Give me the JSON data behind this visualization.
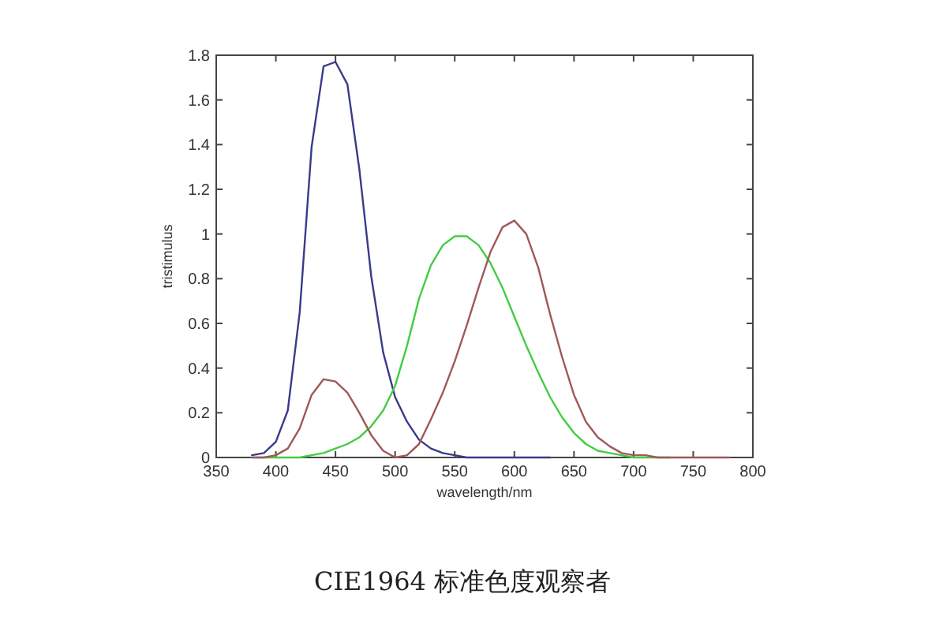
{
  "chart_data": {
    "type": "line",
    "title": "CIE1964 标准色度观察者",
    "xlabel": "wavelength/nm",
    "ylabel": "tristimulus",
    "x": [
      380,
      390,
      400,
      410,
      420,
      430,
      440,
      450,
      460,
      470,
      480,
      490,
      500,
      510,
      520,
      530,
      540,
      550,
      560,
      570,
      580,
      590,
      600,
      610,
      620,
      630,
      640,
      650,
      660,
      670,
      680,
      690,
      700,
      710,
      720,
      730,
      740,
      750,
      760,
      770,
      780
    ],
    "series": [
      {
        "color": "#3a3a8c",
        "values": [
          0.01,
          0.02,
          0.07,
          0.21,
          0.65,
          1.39,
          1.75,
          1.77,
          1.67,
          1.29,
          0.81,
          0.47,
          0.27,
          0.16,
          0.08,
          0.04,
          0.02,
          0.01,
          0.0,
          0.0,
          0.0,
          0.0,
          0.0,
          0.0,
          0.0,
          0.0,
          null,
          null,
          null,
          null,
          null,
          null,
          null,
          null,
          null,
          null,
          null,
          null,
          null,
          null,
          null
        ]
      },
      {
        "color": "#44cc44",
        "values": [
          0.0,
          0.0,
          0.0,
          0.0,
          0.0,
          0.01,
          0.02,
          0.04,
          0.06,
          0.09,
          0.14,
          0.21,
          0.32,
          0.5,
          0.71,
          0.86,
          0.95,
          0.99,
          0.99,
          0.95,
          0.87,
          0.76,
          0.63,
          0.5,
          0.38,
          0.27,
          0.18,
          0.11,
          0.06,
          0.03,
          0.02,
          0.01,
          0.0,
          0.0,
          0.0,
          0.0,
          null,
          null,
          null,
          null,
          null
        ]
      },
      {
        "color": "#a05858",
        "values": [
          0.0,
          0.0,
          0.01,
          0.04,
          0.13,
          0.28,
          0.35,
          0.34,
          0.29,
          0.2,
          0.1,
          0.03,
          0.0,
          0.01,
          0.06,
          0.17,
          0.29,
          0.43,
          0.59,
          0.76,
          0.92,
          1.03,
          1.06,
          1.0,
          0.85,
          0.64,
          0.45,
          0.28,
          0.16,
          0.09,
          0.05,
          0.02,
          0.01,
          0.01,
          0.0,
          0.0,
          0.0,
          0.0,
          0.0,
          0.0,
          0.0
        ]
      }
    ],
    "xlim": [
      350,
      800
    ],
    "ylim": [
      0,
      1.8
    ],
    "xticks": [
      350,
      400,
      450,
      500,
      550,
      600,
      650,
      700,
      750,
      800
    ],
    "yticks": [
      0,
      0.2,
      0.4,
      0.6,
      0.8,
      1,
      1.2,
      1.4,
      1.6,
      1.8
    ]
  }
}
